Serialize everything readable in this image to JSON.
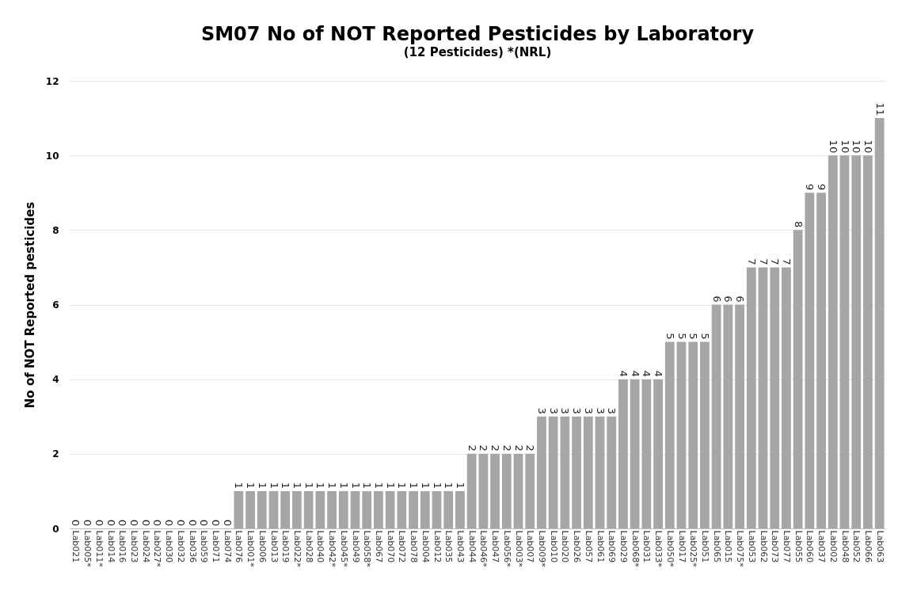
{
  "chart_data": {
    "type": "bar",
    "title": "SM07 No of NOT Reported Pesticides by Laboratory",
    "subtitle": "(12 Pesticides)   *(NRL)",
    "ylabel": "No of NOT Reported pesticides",
    "categories": [
      "Lab021",
      "Lab005*",
      "Lab011*",
      "Lab014",
      "Lab016",
      "Lab023",
      "Lab024",
      "Lab027*",
      "Lab030",
      "Lab032",
      "Lab036",
      "Lab059",
      "Lab071",
      "Lab074",
      "Lab076",
      "Lab001*",
      "Lab006",
      "Lab013",
      "Lab019",
      "Lab022*",
      "Lab028",
      "Lab040",
      "Lab042*",
      "Lab045*",
      "Lab049",
      "Lab058*",
      "Lab067",
      "Lab070",
      "Lab072",
      "Lab078",
      "Lab004",
      "Lab012",
      "Lab035",
      "Lab043",
      "Lab044",
      "Lab046*",
      "Lab047",
      "Lab056*",
      "Lab003*",
      "Lab007",
      "Lab009*",
      "Lab010",
      "Lab020",
      "Lab026",
      "Lab057",
      "Lab061",
      "Lab069",
      "Lab029",
      "Lab068*",
      "Lab031",
      "Lab033*",
      "Lab050*",
      "Lab017",
      "Lab025*",
      "Lab051",
      "Lab065",
      "Lab015",
      "Lab075*",
      "Lab053",
      "Lab062",
      "Lab073",
      "Lab077",
      "Lab055",
      "Lab060",
      "Lab037",
      "Lab002",
      "Lab048",
      "Lab052",
      "Lab066",
      "Lab063"
    ],
    "values": [
      0,
      0,
      0,
      0,
      0,
      0,
      0,
      0,
      0,
      0,
      0,
      0,
      0,
      0,
      1,
      1,
      1,
      1,
      1,
      1,
      1,
      1,
      1,
      1,
      1,
      1,
      1,
      1,
      1,
      1,
      1,
      1,
      1,
      1,
      2,
      2,
      2,
      2,
      2,
      2,
      3,
      3,
      3,
      3,
      3,
      3,
      3,
      4,
      4,
      4,
      4,
      5,
      5,
      5,
      5,
      6,
      6,
      6,
      7,
      7,
      7,
      7,
      8,
      9,
      9,
      10,
      10,
      10,
      10,
      11
    ],
    "color": "#a6a6a6",
    "ylim": [
      0,
      12
    ],
    "yticks": [
      0,
      2,
      4,
      6,
      8,
      10,
      12
    ],
    "grid": "y",
    "data_labels": true
  }
}
